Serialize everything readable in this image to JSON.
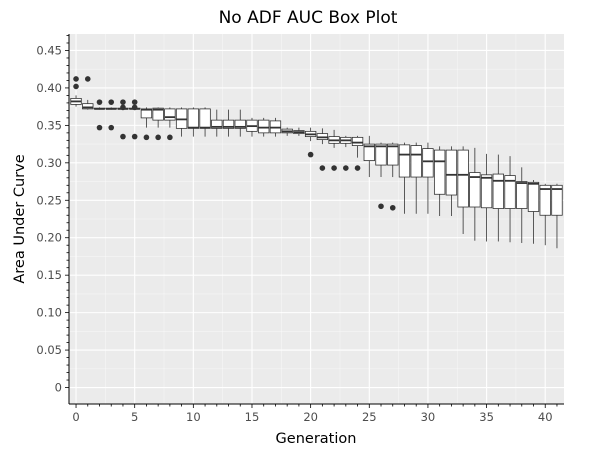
{
  "chart_data": {
    "type": "box",
    "title": "No ADF AUC Box Plot",
    "xlabel": "Generation",
    "ylabel": "Area Under Curve",
    "xlim": [
      -0.6,
      41.6
    ],
    "ylim": [
      -0.022,
      0.472
    ],
    "x_ticks": [
      0,
      5,
      10,
      15,
      20,
      25,
      30,
      35,
      40
    ],
    "y_ticks": [
      0,
      0.05,
      0.1,
      0.15,
      0.2,
      0.25,
      0.3,
      0.35,
      0.4,
      0.45
    ],
    "y_tick_labels": [
      "0",
      "0.05",
      "0.10",
      "0.15",
      "0.20",
      "0.25",
      "0.30",
      "0.35",
      "0.40",
      "0.45"
    ],
    "grid": true,
    "colors": {
      "panel": "#ebebeb",
      "grid_major": "#ffffff",
      "box_fill": "#ffffff",
      "box_line": "#333333",
      "outlier": "#333333"
    },
    "boxes": [
      {
        "x": 0,
        "whisker_low": 0.375,
        "q1": 0.378,
        "median": 0.382,
        "q3": 0.386,
        "whisker_high": 0.39,
        "outliers": [
          0.412,
          0.402
        ]
      },
      {
        "x": 1,
        "whisker_low": 0.371,
        "q1": 0.372,
        "median": 0.374,
        "q3": 0.379,
        "whisker_high": 0.384,
        "outliers": [
          0.412
        ]
      },
      {
        "x": 2,
        "whisker_low": 0.371,
        "q1": 0.372,
        "median": 0.372,
        "q3": 0.373,
        "whisker_high": 0.374,
        "outliers": [
          0.381,
          0.347
        ]
      },
      {
        "x": 3,
        "whisker_low": 0.371,
        "q1": 0.372,
        "median": 0.372,
        "q3": 0.373,
        "whisker_high": 0.374,
        "outliers": [
          0.381,
          0.347
        ]
      },
      {
        "x": 4,
        "whisker_low": 0.371,
        "q1": 0.372,
        "median": 0.372,
        "q3": 0.373,
        "whisker_high": 0.374,
        "outliers": [
          0.381,
          0.374,
          0.335
        ]
      },
      {
        "x": 5,
        "whisker_low": 0.371,
        "q1": 0.372,
        "median": 0.372,
        "q3": 0.373,
        "whisker_high": 0.374,
        "outliers": [
          0.381,
          0.374,
          0.335
        ]
      },
      {
        "x": 6,
        "whisker_low": 0.347,
        "q1": 0.36,
        "median": 0.371,
        "q3": 0.372,
        "whisker_high": 0.374,
        "outliers": [
          0.334
        ]
      },
      {
        "x": 7,
        "whisker_low": 0.347,
        "q1": 0.357,
        "median": 0.371,
        "q3": 0.373,
        "whisker_high": 0.374,
        "outliers": [
          0.334
        ]
      },
      {
        "x": 8,
        "whisker_low": 0.347,
        "q1": 0.357,
        "median": 0.361,
        "q3": 0.372,
        "whisker_high": 0.374,
        "outliers": [
          0.334
        ]
      },
      {
        "x": 9,
        "whisker_low": 0.335,
        "q1": 0.346,
        "median": 0.358,
        "q3": 0.372,
        "whisker_high": 0.374,
        "outliers": []
      },
      {
        "x": 10,
        "whisker_low": 0.335,
        "q1": 0.346,
        "median": 0.347,
        "q3": 0.372,
        "whisker_high": 0.374,
        "outliers": []
      },
      {
        "x": 11,
        "whisker_low": 0.335,
        "q1": 0.346,
        "median": 0.347,
        "q3": 0.372,
        "whisker_high": 0.374,
        "outliers": []
      },
      {
        "x": 12,
        "whisker_low": 0.335,
        "q1": 0.346,
        "median": 0.348,
        "q3": 0.357,
        "whisker_high": 0.371,
        "outliers": []
      },
      {
        "x": 13,
        "whisker_low": 0.335,
        "q1": 0.346,
        "median": 0.348,
        "q3": 0.357,
        "whisker_high": 0.371,
        "outliers": []
      },
      {
        "x": 14,
        "whisker_low": 0.335,
        "q1": 0.346,
        "median": 0.348,
        "q3": 0.357,
        "whisker_high": 0.371,
        "outliers": []
      },
      {
        "x": 15,
        "whisker_low": 0.335,
        "q1": 0.342,
        "median": 0.349,
        "q3": 0.357,
        "whisker_high": 0.36,
        "outliers": []
      },
      {
        "x": 16,
        "whisker_low": 0.335,
        "q1": 0.34,
        "median": 0.347,
        "q3": 0.357,
        "whisker_high": 0.36,
        "outliers": []
      },
      {
        "x": 17,
        "whisker_low": 0.335,
        "q1": 0.34,
        "median": 0.347,
        "q3": 0.356,
        "whisker_high": 0.36,
        "outliers": []
      },
      {
        "x": 18,
        "whisker_low": 0.336,
        "q1": 0.34,
        "median": 0.342,
        "q3": 0.345,
        "whisker_high": 0.347,
        "outliers": []
      },
      {
        "x": 19,
        "whisker_low": 0.336,
        "q1": 0.339,
        "median": 0.341,
        "q3": 0.343,
        "whisker_high": 0.347,
        "outliers": []
      },
      {
        "x": 20,
        "whisker_low": 0.329,
        "q1": 0.335,
        "median": 0.338,
        "q3": 0.342,
        "whisker_high": 0.347,
        "outliers": [
          0.311
        ]
      },
      {
        "x": 21,
        "whisker_low": 0.325,
        "q1": 0.331,
        "median": 0.334,
        "q3": 0.339,
        "whisker_high": 0.346,
        "outliers": [
          0.293
        ]
      },
      {
        "x": 22,
        "whisker_low": 0.32,
        "q1": 0.326,
        "median": 0.33,
        "q3": 0.335,
        "whisker_high": 0.344,
        "outliers": [
          0.293
        ]
      },
      {
        "x": 23,
        "whisker_low": 0.321,
        "q1": 0.326,
        "median": 0.33,
        "q3": 0.334,
        "whisker_high": 0.336,
        "outliers": [
          0.293
        ]
      },
      {
        "x": 24,
        "whisker_low": 0.307,
        "q1": 0.323,
        "median": 0.327,
        "q3": 0.334,
        "whisker_high": 0.336,
        "outliers": [
          0.293
        ]
      },
      {
        "x": 25,
        "whisker_low": 0.281,
        "q1": 0.303,
        "median": 0.322,
        "q3": 0.325,
        "whisker_high": 0.336,
        "outliers": []
      },
      {
        "x": 26,
        "whisker_low": 0.281,
        "q1": 0.297,
        "median": 0.322,
        "q3": 0.325,
        "whisker_high": 0.327,
        "outliers": [
          0.242
        ]
      },
      {
        "x": 27,
        "whisker_low": 0.281,
        "q1": 0.297,
        "median": 0.322,
        "q3": 0.325,
        "whisker_high": 0.327,
        "outliers": [
          0.24
        ]
      },
      {
        "x": 28,
        "whisker_low": 0.232,
        "q1": 0.281,
        "median": 0.311,
        "q3": 0.324,
        "whisker_high": 0.327,
        "outliers": []
      },
      {
        "x": 29,
        "whisker_low": 0.232,
        "q1": 0.281,
        "median": 0.311,
        "q3": 0.323,
        "whisker_high": 0.327,
        "outliers": []
      },
      {
        "x": 30,
        "whisker_low": 0.232,
        "q1": 0.281,
        "median": 0.302,
        "q3": 0.319,
        "whisker_high": 0.327,
        "outliers": []
      },
      {
        "x": 31,
        "whisker_low": 0.229,
        "q1": 0.258,
        "median": 0.302,
        "q3": 0.317,
        "whisker_high": 0.322,
        "outliers": []
      },
      {
        "x": 32,
        "whisker_low": 0.229,
        "q1": 0.257,
        "median": 0.284,
        "q3": 0.317,
        "whisker_high": 0.322,
        "outliers": []
      },
      {
        "x": 33,
        "whisker_low": 0.205,
        "q1": 0.241,
        "median": 0.284,
        "q3": 0.317,
        "whisker_high": 0.322,
        "outliers": []
      },
      {
        "x": 34,
        "whisker_low": 0.196,
        "q1": 0.241,
        "median": 0.281,
        "q3": 0.287,
        "whisker_high": 0.32,
        "outliers": []
      },
      {
        "x": 35,
        "whisker_low": 0.195,
        "q1": 0.24,
        "median": 0.28,
        "q3": 0.284,
        "whisker_high": 0.312,
        "outliers": []
      },
      {
        "x": 36,
        "whisker_low": 0.195,
        "q1": 0.239,
        "median": 0.276,
        "q3": 0.285,
        "whisker_high": 0.311,
        "outliers": []
      },
      {
        "x": 37,
        "whisker_low": 0.194,
        "q1": 0.239,
        "median": 0.276,
        "q3": 0.283,
        "whisker_high": 0.309,
        "outliers": []
      },
      {
        "x": 38,
        "whisker_low": 0.193,
        "q1": 0.239,
        "median": 0.273,
        "q3": 0.275,
        "whisker_high": 0.294,
        "outliers": []
      },
      {
        "x": 39,
        "whisker_low": 0.192,
        "q1": 0.235,
        "median": 0.272,
        "q3": 0.274,
        "whisker_high": 0.277,
        "outliers": []
      },
      {
        "x": 40,
        "whisker_low": 0.19,
        "q1": 0.23,
        "median": 0.265,
        "q3": 0.27,
        "whisker_high": 0.272,
        "outliers": []
      },
      {
        "x": 41,
        "whisker_low": 0.186,
        "q1": 0.23,
        "median": 0.265,
        "q3": 0.27,
        "whisker_high": 0.272,
        "outliers": []
      }
    ]
  }
}
